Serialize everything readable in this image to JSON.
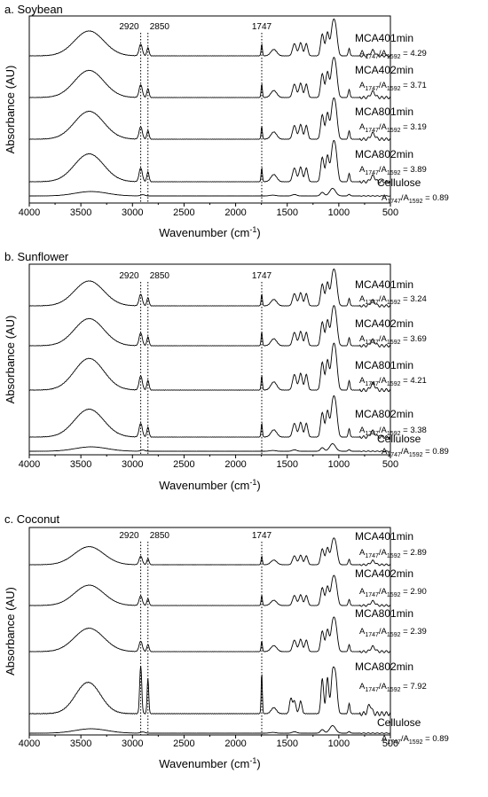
{
  "chart_data": [
    {
      "type": "line",
      "title": "a. Soybean",
      "xlabel": "Wavenumber (cm-1)",
      "ylabel": "Absorbance (AU)",
      "xlim": [
        4000,
        500
      ],
      "x_reversed": true,
      "xticks": [
        "4000",
        "3500",
        "3000",
        "2500",
        "2000",
        "1500",
        "1000",
        "500"
      ],
      "peak_markers": [
        {
          "x": 2920,
          "label": "2920"
        },
        {
          "x": 2850,
          "label": "2850"
        },
        {
          "x": 1747,
          "label": "1747"
        }
      ],
      "series": [
        {
          "name": "MCA401min",
          "ratio": "4.29"
        },
        {
          "name": "MCA402min",
          "ratio": "3.71"
        },
        {
          "name": "MCA801min",
          "ratio": "3.19"
        },
        {
          "name": "MCA802min",
          "ratio": "3.89"
        },
        {
          "name": "Cellulose",
          "ratio": "0.89"
        }
      ]
    },
    {
      "type": "line",
      "title": "b. Sunflower",
      "xlabel": "Wavenumber (cm-1)",
      "ylabel": "Absorbance (AU)",
      "xlim": [
        4000,
        500
      ],
      "x_reversed": true,
      "xticks": [
        "4000",
        "3500",
        "3000",
        "2500",
        "2000",
        "1500",
        "1000",
        "500"
      ],
      "peak_markers": [
        {
          "x": 2920,
          "label": "2920"
        },
        {
          "x": 2850,
          "label": "2850"
        },
        {
          "x": 1747,
          "label": "1747"
        }
      ],
      "series": [
        {
          "name": "MCA401min",
          "ratio": "3.24"
        },
        {
          "name": "MCA402min",
          "ratio": "3.69"
        },
        {
          "name": "MCA801min",
          "ratio": "4.21"
        },
        {
          "name": "MCA802min",
          "ratio": "3.38"
        },
        {
          "name": "Cellulose",
          "ratio": "0.89"
        }
      ]
    },
    {
      "type": "line",
      "title": "c. Coconut",
      "xlabel": "Wavenumber (cm-1)",
      "ylabel": "Absorbance (AU)",
      "xlim": [
        4000,
        500
      ],
      "x_reversed": true,
      "xticks": [
        "4000",
        "3500",
        "3000",
        "2500",
        "2000",
        "1500",
        "1000",
        "500"
      ],
      "peak_markers": [
        {
          "x": 2920,
          "label": "2920"
        },
        {
          "x": 2850,
          "label": "2850"
        },
        {
          "x": 1747,
          "label": "1747"
        }
      ],
      "series": [
        {
          "name": "MCA401min",
          "ratio": "2.89"
        },
        {
          "name": "MCA402min",
          "ratio": "2.90"
        },
        {
          "name": "MCA801min",
          "ratio": "2.39"
        },
        {
          "name": "MCA802min",
          "ratio": "7.92"
        },
        {
          "name": "Cellulose",
          "ratio": "0.89"
        }
      ]
    }
  ]
}
